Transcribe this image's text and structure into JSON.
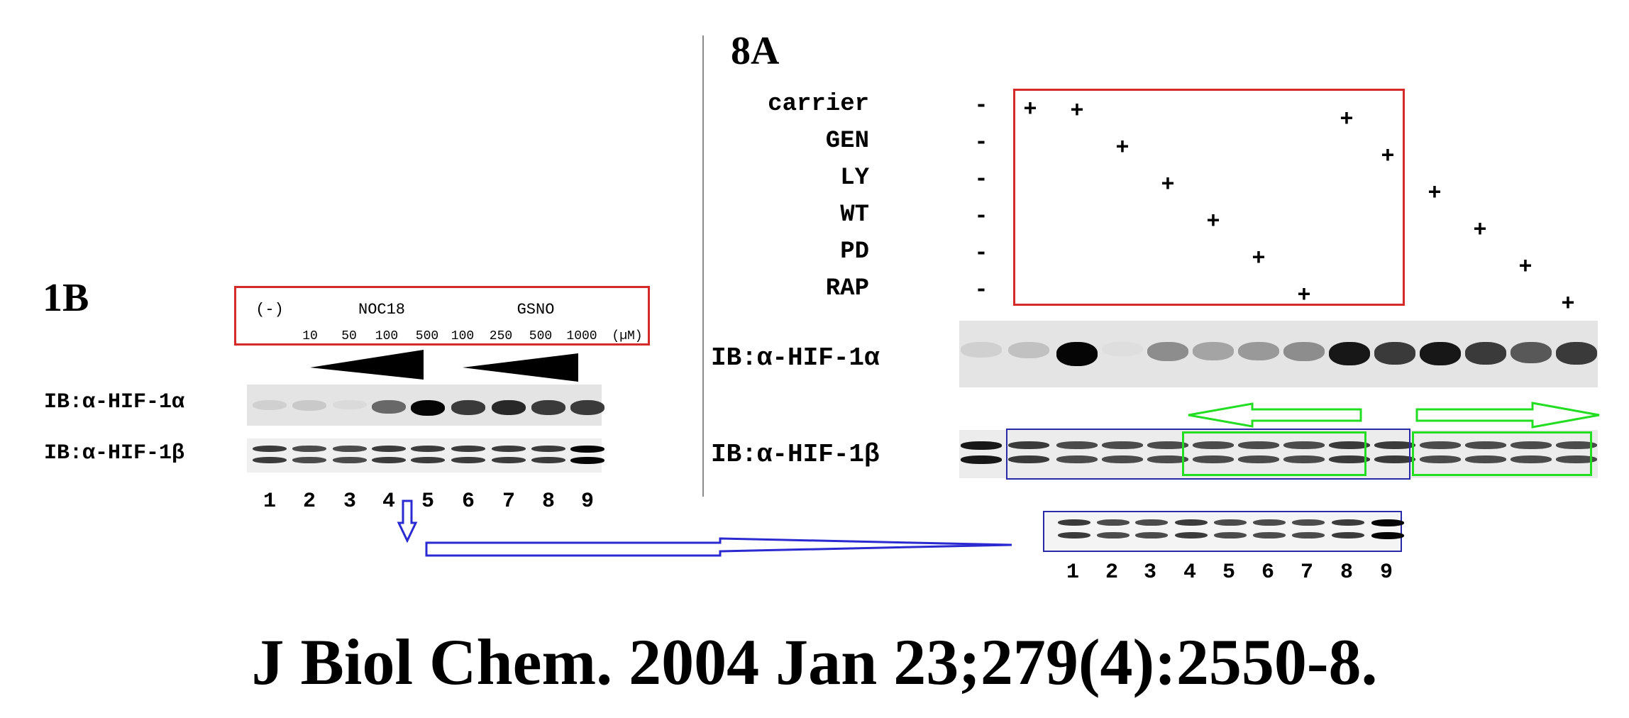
{
  "panel_1b": {
    "label": "1B",
    "box_lines": [
      "(-)",
      "NOC18",
      "GSNO"
    ],
    "concentrations": [
      "10",
      "50",
      "100",
      "500",
      "100",
      "250",
      "500",
      "1000",
      "(µM)"
    ],
    "blots": [
      {
        "label": "IB:α-HIF-1α",
        "intensities": [
          0.2,
          0.25,
          0.12,
          0.7,
          1.0,
          0.85,
          0.9,
          0.85,
          0.85
        ]
      },
      {
        "label": "IB:α-HIF-1β",
        "intensities": [
          0.85,
          0.8,
          0.8,
          0.85,
          0.85,
          0.85,
          0.85,
          0.85,
          1.0
        ]
      }
    ],
    "lanes": [
      "1",
      "2",
      "3",
      "4",
      "5",
      "6",
      "7",
      "8",
      "9"
    ]
  },
  "panel_8a": {
    "label": "8A",
    "treatments": [
      {
        "name": "carrier",
        "marks": [
          "-",
          "+",
          "+",
          "",
          "",
          "",
          "",
          "",
          "+",
          "",
          "",
          "",
          "",
          ""
        ]
      },
      {
        "name": "GEN",
        "marks": [
          "-",
          "",
          "",
          "+",
          "",
          "",
          "",
          "",
          "",
          "+",
          "",
          "",
          "",
          ""
        ]
      },
      {
        "name": "LY",
        "marks": [
          "-",
          "",
          "",
          "",
          "+",
          "",
          "",
          "",
          "",
          "",
          "+",
          "",
          "",
          ""
        ]
      },
      {
        "name": "WT",
        "marks": [
          "-",
          "",
          "",
          "",
          "",
          "+",
          "",
          "",
          "",
          "",
          "",
          "+",
          "",
          ""
        ]
      },
      {
        "name": "PD",
        "marks": [
          "-",
          "",
          "",
          "",
          "",
          "",
          "+",
          "",
          "",
          "",
          "",
          "",
          "+",
          ""
        ]
      },
      {
        "name": "RAP",
        "marks": [
          "-",
          "",
          "",
          "",
          "",
          "",
          "",
          "+",
          "",
          "",
          "",
          "",
          "",
          "+"
        ]
      }
    ],
    "blots": [
      {
        "label": "IB:α-HIF-1α",
        "intensities": [
          0.2,
          0.3,
          1.0,
          0.08,
          0.55,
          0.45,
          0.5,
          0.55,
          0.95,
          0.85,
          0.95,
          0.85,
          0.75,
          0.85
        ]
      },
      {
        "label": "IB:α-HIF-1β",
        "intensities": [
          0.95,
          0.85,
          0.8,
          0.8,
          0.8,
          0.8,
          0.8,
          0.8,
          0.85,
          0.85,
          0.8,
          0.8,
          0.8,
          0.8
        ]
      }
    ]
  },
  "comparison_strip": {
    "intensities": [
      0.85,
      0.8,
      0.8,
      0.85,
      0.8,
      0.8,
      0.8,
      0.85,
      1.0
    ],
    "lanes": [
      "1",
      "2",
      "3",
      "4",
      "5",
      "6",
      "7",
      "8",
      "9"
    ]
  },
  "citation": "J Biol Chem. 2004 Jan 23;279(4):2550-8.",
  "colors": {
    "red_box": "#d42a2a",
    "green_box": "#22dd22",
    "blue_box": "#2a2aa8",
    "blue_arrow": "#2a2ad0",
    "divider": "#888888",
    "wedge": "#000000"
  }
}
